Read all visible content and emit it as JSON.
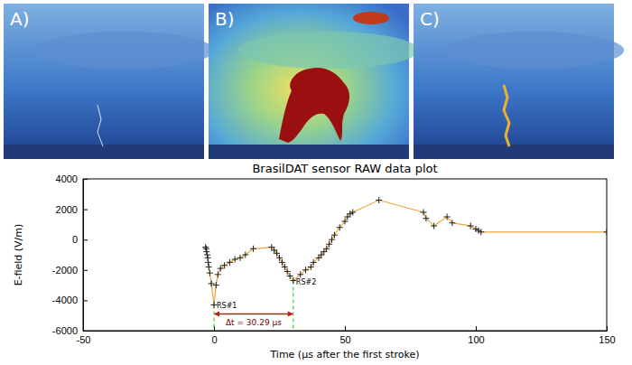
{
  "panels": [
    {
      "label": "A)"
    },
    {
      "label": "B)"
    },
    {
      "label": "C)"
    }
  ],
  "chart_data": {
    "type": "line",
    "title": "BrasilDAT sensor RAW data plot",
    "x_label": "Time (µs after the first stroke)",
    "y_label": "E-field (V/m)",
    "x": [
      -3.2,
      -3.0,
      -2.8,
      -2.6,
      -2.4,
      -2.2,
      -2.0,
      -1.6,
      -1.0,
      0,
      0.8,
      1.5,
      2.5,
      4,
      6,
      8,
      10,
      12,
      15,
      22,
      23,
      24,
      25,
      26,
      27,
      28,
      29,
      30.29,
      33,
      35,
      37,
      38,
      40,
      41,
      42,
      43,
      44,
      45,
      46,
      48,
      50,
      51,
      52,
      53,
      63,
      80,
      81,
      84,
      89,
      91,
      98,
      100,
      101,
      102,
      150
    ],
    "values": [
      -500,
      -600,
      -800,
      -1000,
      -1200,
      -1500,
      -1800,
      -2200,
      -2900,
      -4300,
      -3000,
      -2300,
      -1900,
      -1700,
      -1500,
      -1300,
      -1200,
      -1000,
      -600,
      -500,
      -700,
      -900,
      -1200,
      -1500,
      -1800,
      -2100,
      -2400,
      -2700,
      -2300,
      -2000,
      -1800,
      -1500,
      -1200,
      -1000,
      -800,
      -600,
      -300,
      0,
      300,
      800,
      1200,
      1500,
      1700,
      1800,
      2600,
      1800,
      1400,
      900,
      1500,
      1100,
      900,
      700,
      600,
      500,
      500
    ],
    "color": "#eba63c",
    "marker": "plus",
    "xlim": [
      -50,
      150
    ],
    "xticks": [
      -50,
      0,
      50,
      100,
      150
    ],
    "ylim": [
      -6000,
      4000
    ],
    "yticks": [
      -6000,
      -4000,
      -2000,
      0,
      2000,
      4000
    ],
    "annotations": [
      {
        "text": "RS#1",
        "x": 0,
        "y": -4300
      },
      {
        "text": "RS#2",
        "x": 30.29,
        "y": -2700
      }
    ],
    "interval": {
      "label": "Δt = 30.29 µs",
      "x0": 0,
      "x1": 30.29,
      "y": -4900
    }
  }
}
